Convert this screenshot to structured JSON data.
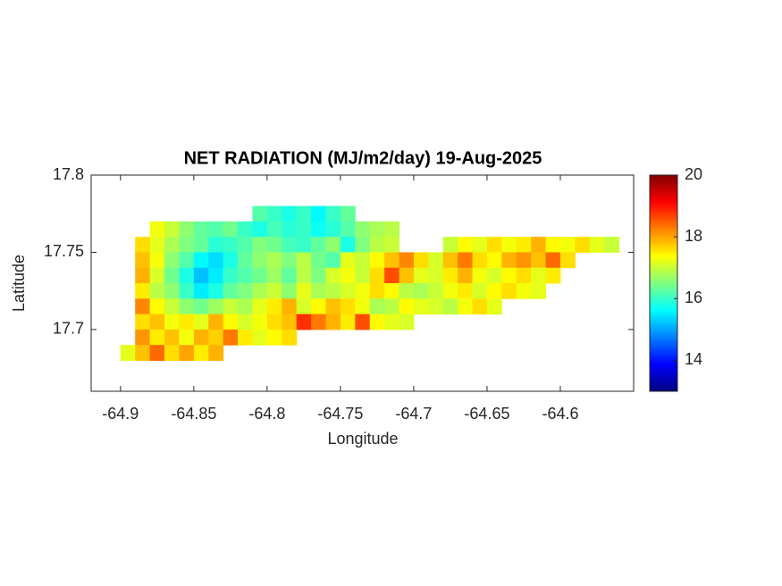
{
  "chart_data": {
    "type": "heatmap",
    "title": "NET RADIATION (MJ/m2/day) 19-Aug-2025",
    "xlabel": "Longitude",
    "ylabel": "Latitude",
    "xlim": [
      -64.92,
      -64.55
    ],
    "ylim": [
      17.66,
      17.8
    ],
    "xticks": [
      -64.9,
      -64.85,
      -64.8,
      -64.75,
      -64.7,
      -64.65,
      -64.6
    ],
    "yticks": [
      17.7,
      17.75,
      17.8
    ],
    "colormap": "jet",
    "clim": [
      13,
      20
    ],
    "cticks": [
      14,
      16,
      18,
      20
    ],
    "x": [
      -64.895,
      -64.885,
      -64.875,
      -64.865,
      -64.855,
      -64.845,
      -64.835,
      -64.825,
      -64.815,
      -64.805,
      -64.795,
      -64.785,
      -64.775,
      -64.765,
      -64.755,
      -64.745,
      -64.735,
      -64.725,
      -64.715,
      -64.705,
      -64.695,
      -64.685,
      -64.675,
      -64.665,
      -64.655,
      -64.645,
      -64.635,
      -64.625,
      -64.615,
      -64.605,
      -64.595,
      -64.585,
      -64.575,
      -64.565
    ],
    "y": [
      17.775,
      17.765,
      17.755,
      17.745,
      17.735,
      17.725,
      17.715,
      17.705,
      17.695,
      17.685
    ],
    "z": [
      [
        null,
        null,
        null,
        null,
        null,
        null,
        null,
        null,
        null,
        16.2,
        16,
        15.8,
        16,
        15.6,
        16,
        16.3,
        null,
        null,
        null,
        null,
        null,
        null,
        null,
        null,
        null,
        null,
        null,
        null,
        null,
        null,
        null,
        null,
        null,
        null
      ],
      [
        null,
        null,
        17.3,
        17,
        16.6,
        16.3,
        16.2,
        16.4,
        16,
        15.8,
        16.1,
        15.9,
        16,
        15.7,
        15.9,
        16.2,
        16.6,
        16.8,
        16.9,
        null,
        null,
        null,
        null,
        null,
        null,
        null,
        null,
        null,
        null,
        null,
        null,
        null,
        null,
        null
      ],
      [
        null,
        17.6,
        17.2,
        16.8,
        16.5,
        16.3,
        15.9,
        16,
        16.2,
        16.5,
        16.4,
        16.1,
        16,
        16.3,
        16.6,
        15.8,
        16.5,
        16.9,
        17,
        null,
        null,
        null,
        17,
        17.4,
        17.2,
        17.6,
        17.3,
        17.5,
        17.9,
        17.4,
        17.3,
        17.6,
        17.2,
        17
      ],
      [
        null,
        17.8,
        17.3,
        16.6,
        16.2,
        15.6,
        15.4,
        15.8,
        16.3,
        16.6,
        16.8,
        16.5,
        16.9,
        16.4,
        16.2,
        17.2,
        17,
        17.4,
        17.8,
        18.2,
        17.6,
        17.1,
        17.8,
        18.3,
        17.6,
        17.4,
        17.9,
        18.1,
        17.8,
        18.4,
        17.6,
        null,
        null,
        null
      ],
      [
        null,
        17.9,
        17.1,
        16.4,
        15.8,
        15.2,
        15.5,
        16,
        16.2,
        16.4,
        16.7,
        16.3,
        16.9,
        16.5,
        17.1,
        17.3,
        17,
        17.6,
        18.6,
        17.8,
        17.2,
        17.1,
        17.5,
        17.9,
        17.3,
        17.1,
        17.4,
        17.6,
        17.2,
        17.5,
        null,
        null,
        null,
        null
      ],
      [
        null,
        17.5,
        16.9,
        16.6,
        16,
        15.5,
        15.8,
        16.3,
        16.5,
        16.8,
        17,
        16.6,
        17.2,
        16.8,
        16.9,
        17.1,
        17.3,
        17.6,
        17.4,
        16.9,
        16.8,
        17,
        17.3,
        17.5,
        17.1,
        17.4,
        17.6,
        17.3,
        17.2,
        null,
        null,
        null,
        null,
        null
      ],
      [
        null,
        18.2,
        17.4,
        17,
        16.6,
        16.4,
        16.7,
        17,
        16.8,
        17.2,
        17.5,
        17.9,
        17.1,
        17.4,
        17.8,
        17.6,
        17.3,
        16.8,
        16.9,
        17.4,
        17.2,
        17.1,
        16.9,
        17.3,
        17.6,
        17.2,
        null,
        null,
        null,
        null,
        null,
        null,
        null,
        null
      ],
      [
        null,
        17.6,
        17.8,
        17.3,
        17.5,
        17.2,
        17.9,
        17.4,
        17.1,
        17.3,
        17.6,
        17.8,
        18.8,
        18.3,
        17.9,
        17.5,
        18.6,
        17.4,
        17.2,
        17.1,
        null,
        null,
        null,
        null,
        null,
        null,
        null,
        null,
        null,
        null,
        null,
        null,
        null,
        null
      ],
      [
        null,
        18.1,
        17.5,
        17.8,
        17.3,
        17.9,
        17.7,
        18.3,
        17.5,
        17.2,
        17.4,
        17.6,
        null,
        null,
        null,
        null,
        null,
        null,
        null,
        null,
        null,
        null,
        null,
        null,
        null,
        null,
        null,
        null,
        null,
        null,
        null,
        null,
        null,
        null
      ],
      [
        17.2,
        17.8,
        18.4,
        17.6,
        18,
        17.5,
        17.9,
        null,
        null,
        null,
        null,
        null,
        null,
        null,
        null,
        null,
        null,
        null,
        null,
        null,
        null,
        null,
        null,
        null,
        null,
        null,
        null,
        null,
        null,
        null,
        null,
        null,
        null,
        null
      ]
    ]
  }
}
